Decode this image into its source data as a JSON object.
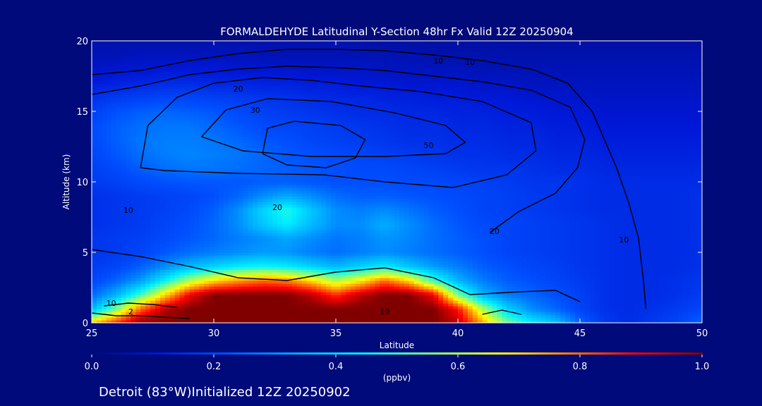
{
  "chart_data": {
    "type": "heatmap",
    "title": "FORMALDEHYDE Latitudinal Y-Section 48hr  Fx Valid 12Z 20250904",
    "xlabel": "Latitude",
    "ylabel": "Altitude (km)",
    "xlim": [
      25,
      50
    ],
    "ylim": [
      0,
      20
    ],
    "x_ticks": [
      25,
      30,
      35,
      40,
      45,
      50
    ],
    "y_ticks": [
      0,
      5,
      10,
      15,
      20
    ],
    "colorbar": {
      "label": "(ppbv)",
      "min": 0.0,
      "max": 1.0,
      "ticks": [
        "0.0",
        "0.2",
        "0.4",
        "0.6",
        "0.8",
        "1.0"
      ],
      "colors": [
        "#000a7a",
        "#0018d8",
        "#0050ff",
        "#00a8ff",
        "#00f0ff",
        "#80ff80",
        "#ffff00",
        "#ff8000",
        "#ff0000",
        "#800000"
      ]
    },
    "grid": false,
    "filled_field": {
      "x": [
        25,
        26,
        27,
        28,
        29,
        30,
        31,
        32,
        33,
        34,
        35,
        36,
        37,
        38,
        39,
        40,
        41,
        42,
        43,
        44,
        45,
        46,
        47,
        48,
        49,
        50
      ],
      "y": [
        0,
        1,
        2,
        3,
        4,
        5,
        6,
        7,
        8,
        9,
        10,
        11,
        12,
        13,
        14,
        15,
        16,
        17,
        18,
        19,
        20
      ],
      "values": [
        [
          0.72,
          0.86,
          1.0,
          1.0,
          1.0,
          1.0,
          1.0,
          1.0,
          1.0,
          1.0,
          1.0,
          1.0,
          1.0,
          1.0,
          1.0,
          0.95,
          0.75,
          0.55,
          0.45,
          0.38,
          0.25,
          0.18,
          0.15,
          0.18,
          0.2,
          0.25
        ],
        [
          0.35,
          0.55,
          0.8,
          0.95,
          1.0,
          1.0,
          1.0,
          1.0,
          1.0,
          1.0,
          1.0,
          1.0,
          1.0,
          1.0,
          1.0,
          0.88,
          0.6,
          0.4,
          0.3,
          0.25,
          0.2,
          0.16,
          0.15,
          0.16,
          0.18,
          0.2
        ],
        [
          0.25,
          0.35,
          0.5,
          0.7,
          0.9,
          1.0,
          1.0,
          1.0,
          1.0,
          0.95,
          0.85,
          0.95,
          1.0,
          1.0,
          0.9,
          0.55,
          0.35,
          0.28,
          0.25,
          0.22,
          0.19,
          0.16,
          0.15,
          0.15,
          0.16,
          0.18
        ],
        [
          0.2,
          0.25,
          0.32,
          0.45,
          0.6,
          0.7,
          0.76,
          0.8,
          0.78,
          0.7,
          0.6,
          0.68,
          0.8,
          0.7,
          0.5,
          0.35,
          0.28,
          0.24,
          0.22,
          0.2,
          0.18,
          0.16,
          0.15,
          0.15,
          0.16,
          0.17
        ],
        [
          0.18,
          0.2,
          0.24,
          0.3,
          0.36,
          0.4,
          0.44,
          0.46,
          0.44,
          0.4,
          0.36,
          0.4,
          0.44,
          0.38,
          0.32,
          0.28,
          0.24,
          0.22,
          0.2,
          0.19,
          0.17,
          0.16,
          0.15,
          0.15,
          0.15,
          0.16
        ],
        [
          0.17,
          0.18,
          0.2,
          0.23,
          0.26,
          0.28,
          0.3,
          0.32,
          0.31,
          0.28,
          0.26,
          0.28,
          0.3,
          0.28,
          0.26,
          0.24,
          0.22,
          0.2,
          0.19,
          0.18,
          0.17,
          0.16,
          0.15,
          0.15,
          0.15,
          0.16
        ],
        [
          0.17,
          0.18,
          0.19,
          0.21,
          0.23,
          0.25,
          0.28,
          0.3,
          0.33,
          0.3,
          0.27,
          0.28,
          0.31,
          0.29,
          0.26,
          0.24,
          0.22,
          0.2,
          0.19,
          0.18,
          0.17,
          0.16,
          0.15,
          0.15,
          0.15,
          0.16
        ],
        [
          0.16,
          0.17,
          0.18,
          0.2,
          0.22,
          0.25,
          0.3,
          0.38,
          0.44,
          0.36,
          0.3,
          0.3,
          0.34,
          0.3,
          0.26,
          0.23,
          0.21,
          0.2,
          0.19,
          0.18,
          0.17,
          0.16,
          0.15,
          0.15,
          0.15,
          0.16
        ],
        [
          0.16,
          0.17,
          0.18,
          0.19,
          0.21,
          0.24,
          0.3,
          0.4,
          0.48,
          0.38,
          0.3,
          0.28,
          0.3,
          0.27,
          0.24,
          0.22,
          0.2,
          0.19,
          0.18,
          0.17,
          0.16,
          0.15,
          0.15,
          0.15,
          0.15,
          0.16
        ],
        [
          0.16,
          0.17,
          0.18,
          0.19,
          0.2,
          0.22,
          0.25,
          0.3,
          0.34,
          0.3,
          0.26,
          0.24,
          0.24,
          0.23,
          0.22,
          0.21,
          0.2,
          0.19,
          0.18,
          0.17,
          0.16,
          0.15,
          0.15,
          0.15,
          0.15,
          0.16
        ],
        [
          0.18,
          0.19,
          0.21,
          0.22,
          0.23,
          0.23,
          0.23,
          0.24,
          0.24,
          0.23,
          0.22,
          0.22,
          0.22,
          0.21,
          0.21,
          0.2,
          0.19,
          0.18,
          0.17,
          0.17,
          0.16,
          0.15,
          0.15,
          0.15,
          0.15,
          0.15
        ],
        [
          0.19,
          0.21,
          0.24,
          0.26,
          0.27,
          0.27,
          0.26,
          0.25,
          0.24,
          0.23,
          0.22,
          0.21,
          0.21,
          0.2,
          0.19,
          0.18,
          0.17,
          0.17,
          0.16,
          0.15,
          0.15,
          0.14,
          0.14,
          0.14,
          0.14,
          0.14
        ],
        [
          0.2,
          0.23,
          0.26,
          0.28,
          0.29,
          0.28,
          0.27,
          0.25,
          0.23,
          0.22,
          0.21,
          0.2,
          0.19,
          0.18,
          0.17,
          0.16,
          0.16,
          0.15,
          0.15,
          0.14,
          0.14,
          0.13,
          0.13,
          0.13,
          0.13,
          0.13
        ],
        [
          0.21,
          0.24,
          0.27,
          0.28,
          0.28,
          0.27,
          0.25,
          0.23,
          0.22,
          0.2,
          0.19,
          0.18,
          0.17,
          0.16,
          0.16,
          0.15,
          0.15,
          0.14,
          0.14,
          0.13,
          0.13,
          0.12,
          0.12,
          0.12,
          0.12,
          0.12
        ],
        [
          0.21,
          0.24,
          0.26,
          0.27,
          0.27,
          0.25,
          0.23,
          0.21,
          0.2,
          0.19,
          0.18,
          0.17,
          0.16,
          0.15,
          0.15,
          0.14,
          0.14,
          0.13,
          0.13,
          0.12,
          0.12,
          0.11,
          0.11,
          0.11,
          0.11,
          0.11
        ],
        [
          0.19,
          0.22,
          0.24,
          0.25,
          0.24,
          0.23,
          0.21,
          0.19,
          0.18,
          0.17,
          0.16,
          0.15,
          0.15,
          0.14,
          0.14,
          0.13,
          0.13,
          0.12,
          0.12,
          0.11,
          0.11,
          0.1,
          0.1,
          0.1,
          0.1,
          0.1
        ],
        [
          0.16,
          0.18,
          0.19,
          0.2,
          0.2,
          0.19,
          0.18,
          0.17,
          0.16,
          0.15,
          0.14,
          0.14,
          0.13,
          0.13,
          0.12,
          0.12,
          0.11,
          0.11,
          0.1,
          0.1,
          0.09,
          0.09,
          0.09,
          0.09,
          0.09,
          0.09
        ],
        [
          0.12,
          0.13,
          0.14,
          0.15,
          0.15,
          0.14,
          0.14,
          0.13,
          0.13,
          0.12,
          0.12,
          0.11,
          0.11,
          0.1,
          0.1,
          0.1,
          0.09,
          0.09,
          0.08,
          0.08,
          0.08,
          0.08,
          0.08,
          0.08,
          0.08,
          0.08
        ],
        [
          0.09,
          0.1,
          0.1,
          0.11,
          0.11,
          0.11,
          0.1,
          0.1,
          0.1,
          0.09,
          0.09,
          0.09,
          0.08,
          0.08,
          0.08,
          0.08,
          0.07,
          0.07,
          0.07,
          0.07,
          0.07,
          0.07,
          0.07,
          0.07,
          0.07,
          0.07
        ],
        [
          0.07,
          0.07,
          0.08,
          0.08,
          0.08,
          0.08,
          0.08,
          0.07,
          0.07,
          0.07,
          0.07,
          0.07,
          0.07,
          0.07,
          0.06,
          0.06,
          0.06,
          0.06,
          0.06,
          0.06,
          0.06,
          0.06,
          0.06,
          0.06,
          0.06,
          0.06
        ],
        [
          0.06,
          0.06,
          0.06,
          0.06,
          0.06,
          0.06,
          0.06,
          0.06,
          0.06,
          0.06,
          0.06,
          0.06,
          0.05,
          0.05,
          0.05,
          0.05,
          0.05,
          0.05,
          0.05,
          0.05,
          0.05,
          0.05,
          0.05,
          0.05,
          0.05,
          0.05
        ]
      ]
    },
    "contour_lines": [
      {
        "label": "10",
        "points": [
          [
            25,
            17.6
          ],
          [
            27,
            17.9
          ],
          [
            29,
            18.6
          ],
          [
            31,
            19.1
          ],
          [
            33,
            19.4
          ],
          [
            35,
            19.4
          ],
          [
            37,
            19.3
          ],
          [
            39,
            19.0
          ],
          [
            41,
            18.6
          ],
          [
            43,
            18.0
          ],
          [
            44.5,
            17.0
          ],
          [
            45.5,
            15.0
          ],
          [
            46,
            13.0
          ],
          [
            46.5,
            11.0
          ],
          [
            47,
            8.5
          ],
          [
            47.4,
            6.0
          ],
          [
            47.6,
            3.0
          ],
          [
            47.7,
            1.0
          ]
        ]
      },
      {
        "label": "20",
        "points": [
          [
            25,
            16.2
          ],
          [
            27,
            16.8
          ],
          [
            29,
            17.6
          ],
          [
            31,
            18.0
          ],
          [
            33,
            18.2
          ],
          [
            35,
            18.1
          ],
          [
            37,
            17.9
          ],
          [
            39,
            17.5
          ],
          [
            41,
            17.1
          ],
          [
            43,
            16.5
          ],
          [
            44.6,
            15.3
          ],
          [
            45.2,
            13.0
          ],
          [
            44.9,
            11.0
          ],
          [
            44.0,
            9.2
          ],
          [
            42.5,
            7.9
          ],
          [
            41.3,
            6.4
          ]
        ]
      },
      {
        "label": "30",
        "points": [
          [
            27,
            11.0
          ],
          [
            27.3,
            14.0
          ],
          [
            28.5,
            16.0
          ],
          [
            30.0,
            17.0
          ],
          [
            32.0,
            17.4
          ],
          [
            34.0,
            17.2
          ],
          [
            36.0,
            16.8
          ],
          [
            38.5,
            16.4
          ],
          [
            41.0,
            15.7
          ],
          [
            43.0,
            14.2
          ],
          [
            43.2,
            12.2
          ],
          [
            42.0,
            10.5
          ],
          [
            39.8,
            9.6
          ],
          [
            37.0,
            10.0
          ],
          [
            34.5,
            10.5
          ],
          [
            31.0,
            10.6
          ],
          [
            28.0,
            10.8
          ],
          [
            27.0,
            11.0
          ]
        ]
      },
      {
        "label": "50",
        "points": [
          [
            29.5,
            13.2
          ],
          [
            30.5,
            15.1
          ],
          [
            32.2,
            15.9
          ],
          [
            34.8,
            15.7
          ],
          [
            37.4,
            14.9
          ],
          [
            39.5,
            14.0
          ],
          [
            40.3,
            12.8
          ],
          [
            39.5,
            12.0
          ],
          [
            37.0,
            11.8
          ],
          [
            34.0,
            11.8
          ],
          [
            31.2,
            12.2
          ],
          [
            29.5,
            13.2
          ]
        ]
      },
      {
        "label": "",
        "points": [
          [
            32.0,
            12.0
          ],
          [
            32.2,
            13.8
          ],
          [
            33.3,
            14.3
          ],
          [
            35.2,
            14.0
          ],
          [
            36.2,
            13.0
          ],
          [
            35.8,
            11.7
          ],
          [
            34.6,
            11.0
          ],
          [
            33.0,
            11.2
          ],
          [
            32.0,
            12.0
          ]
        ]
      },
      {
        "label": "10",
        "points": [
          [
            25,
            5.2
          ],
          [
            27,
            4.7
          ],
          [
            29,
            4.0
          ],
          [
            31,
            3.2
          ],
          [
            33,
            3.0
          ],
          [
            35,
            3.6
          ],
          [
            37,
            3.9
          ],
          [
            39,
            3.2
          ],
          [
            40.5,
            2.0
          ],
          [
            42.5,
            2.2
          ],
          [
            44.0,
            2.3
          ],
          [
            45,
            1.5
          ]
        ]
      },
      {
        "label": "",
        "points": [
          [
            25.5,
            1.2
          ],
          [
            26.5,
            1.4
          ],
          [
            27.5,
            1.3
          ],
          [
            28.5,
            1.1
          ]
        ]
      },
      {
        "label": "",
        "points": [
          [
            41.0,
            0.6
          ],
          [
            41.8,
            0.9
          ],
          [
            42.6,
            0.6
          ]
        ]
      },
      {
        "label": "2",
        "points": [
          [
            25,
            0.7
          ],
          [
            26.0,
            0.5
          ],
          [
            27.0,
            0.5
          ],
          [
            28.0,
            0.4
          ],
          [
            29.0,
            0.3
          ]
        ]
      }
    ],
    "contour_label_positions": [
      {
        "text": "10",
        "x": 40.5,
        "y": 18.3
      },
      {
        "text": "10",
        "x": 39.2,
        "y": 18.4
      },
      {
        "text": "20",
        "x": 31.0,
        "y": 16.4
      },
      {
        "text": "30",
        "x": 31.7,
        "y": 14.9
      },
      {
        "text": "50",
        "x": 38.8,
        "y": 12.4
      },
      {
        "text": "20",
        "x": 32.6,
        "y": 8.0
      },
      {
        "text": "10",
        "x": 26.5,
        "y": 7.8
      },
      {
        "text": "20",
        "x": 41.5,
        "y": 6.3
      },
      {
        "text": "10",
        "x": 46.8,
        "y": 5.7
      },
      {
        "text": "10",
        "x": 37.0,
        "y": 0.6
      },
      {
        "text": "10",
        "x": 25.8,
        "y": 1.2
      },
      {
        "text": "2",
        "x": 26.6,
        "y": 0.6
      }
    ]
  },
  "footer": {
    "text": "Detroit (83°W)Initialized 12Z 20250902"
  }
}
